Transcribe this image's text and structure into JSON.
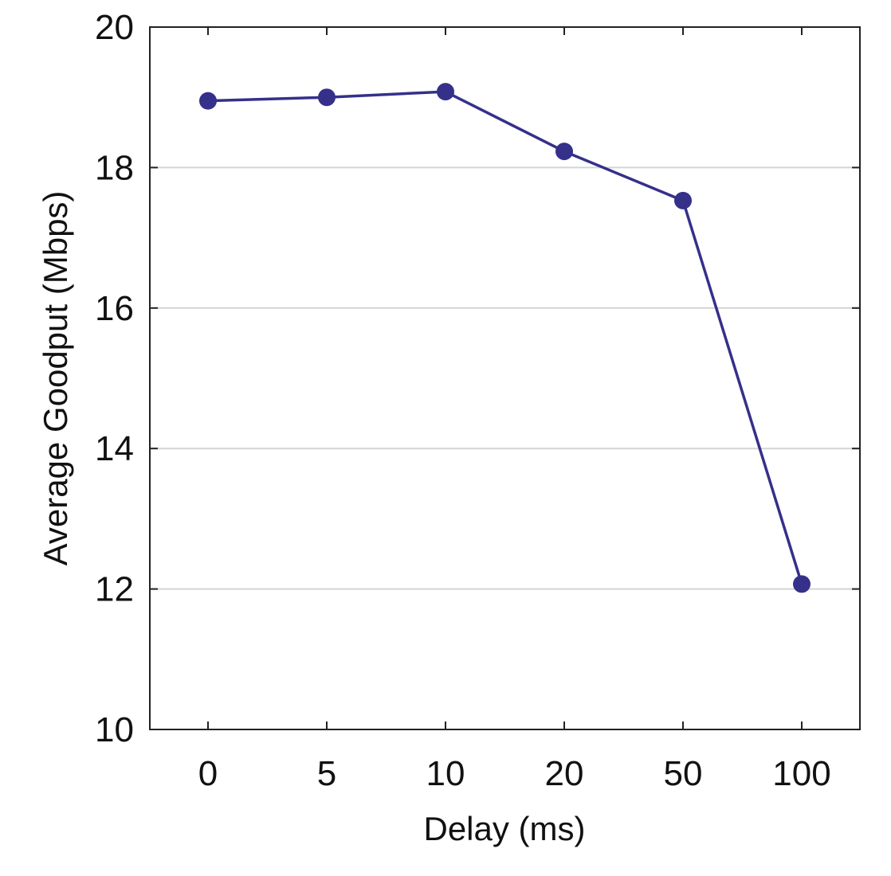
{
  "chart_data": {
    "type": "line",
    "title": "",
    "xlabel": "Delay (ms)",
    "ylabel": "Average Goodput (Mbps)",
    "categories": [
      "0",
      "5",
      "10",
      "20",
      "50",
      "100"
    ],
    "series": [
      {
        "name": "Average Goodput",
        "values": [
          18.95,
          19.0,
          19.08,
          18.23,
          17.53,
          12.07
        ],
        "color": "#35308a"
      }
    ],
    "ylim": [
      10,
      20
    ],
    "yticks": [
      "10",
      "12",
      "14",
      "16",
      "18",
      "20"
    ],
    "grid": "horizontal",
    "legend": "none"
  }
}
